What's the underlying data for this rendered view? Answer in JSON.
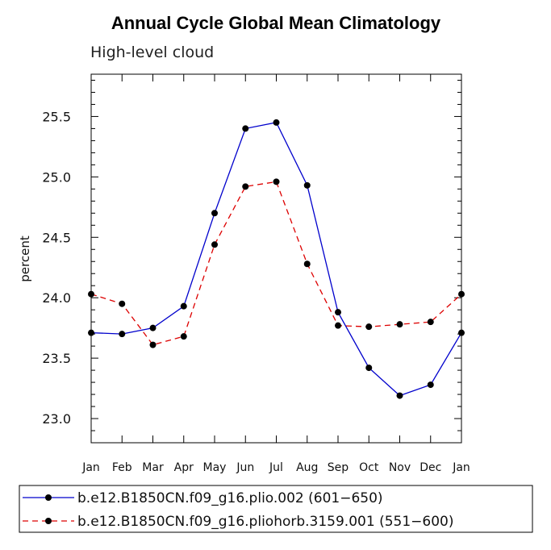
{
  "chart_data": {
    "type": "line",
    "title": "Annual Cycle Global Mean Climatology",
    "subtitle": "High-level cloud",
    "xlabel": "",
    "ylabel": "percent",
    "categories": [
      "Jan",
      "Feb",
      "Mar",
      "Apr",
      "May",
      "Jun",
      "Jul",
      "Aug",
      "Sep",
      "Oct",
      "Nov",
      "Dec",
      "Jan"
    ],
    "ylim": [
      22.8,
      25.85
    ],
    "yticks": [
      23.0,
      23.5,
      24.0,
      24.5,
      25.0,
      25.5
    ],
    "ytick_labels": [
      "23.0",
      "23.5",
      "24.0",
      "24.5",
      "25.0",
      "25.5"
    ],
    "series": [
      {
        "name": "b.e12.B1850CN.f09_g16.plio.002 (601−650)",
        "color": "#0000cc",
        "dash": "solid",
        "values": [
          23.71,
          23.7,
          23.75,
          23.93,
          24.7,
          25.4,
          25.45,
          24.93,
          23.88,
          23.42,
          23.19,
          23.28,
          23.71
        ]
      },
      {
        "name": "b.e12.B1850CN.f09_g16.pliohorb.3159.001 (551−600)",
        "color": "#dd0000",
        "dash": "dashed",
        "values": [
          24.03,
          23.95,
          23.61,
          23.68,
          24.44,
          24.92,
          24.96,
          24.28,
          23.77,
          23.76,
          23.78,
          23.8,
          24.03
        ]
      }
    ]
  }
}
